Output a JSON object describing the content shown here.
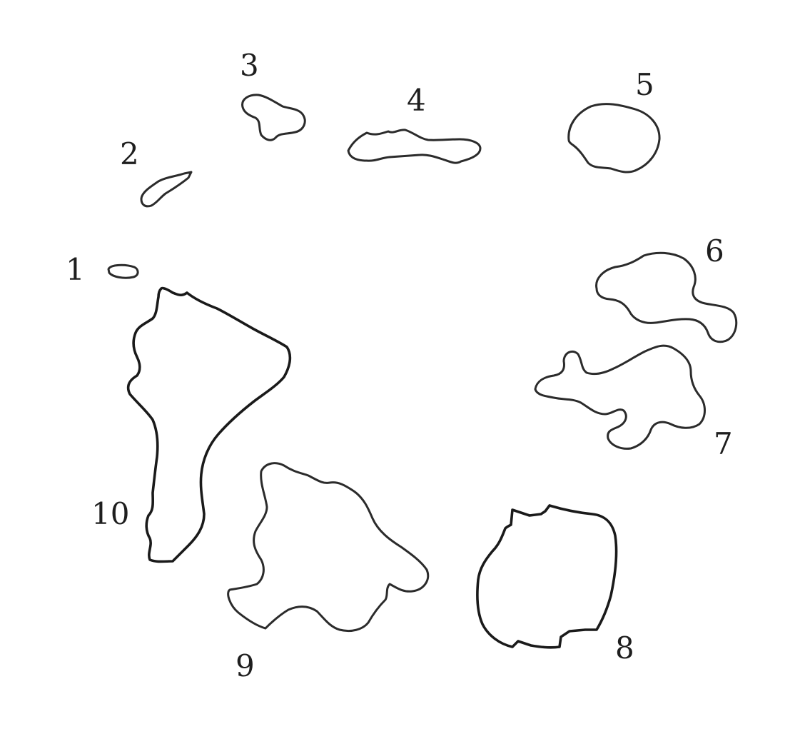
{
  "figure": {
    "shapes": [
      {
        "id": "1",
        "label": "1"
      },
      {
        "id": "2",
        "label": "2"
      },
      {
        "id": "3",
        "label": "3"
      },
      {
        "id": "4",
        "label": "4"
      },
      {
        "id": "5",
        "label": "5"
      },
      {
        "id": "6",
        "label": "6"
      },
      {
        "id": "7",
        "label": "7"
      },
      {
        "id": "8",
        "label": "8"
      },
      {
        "id": "9",
        "label": "9"
      },
      {
        "id": "10",
        "label": "10"
      }
    ],
    "outline_color": "#2b2b2b",
    "background_color": "#ffffff"
  }
}
